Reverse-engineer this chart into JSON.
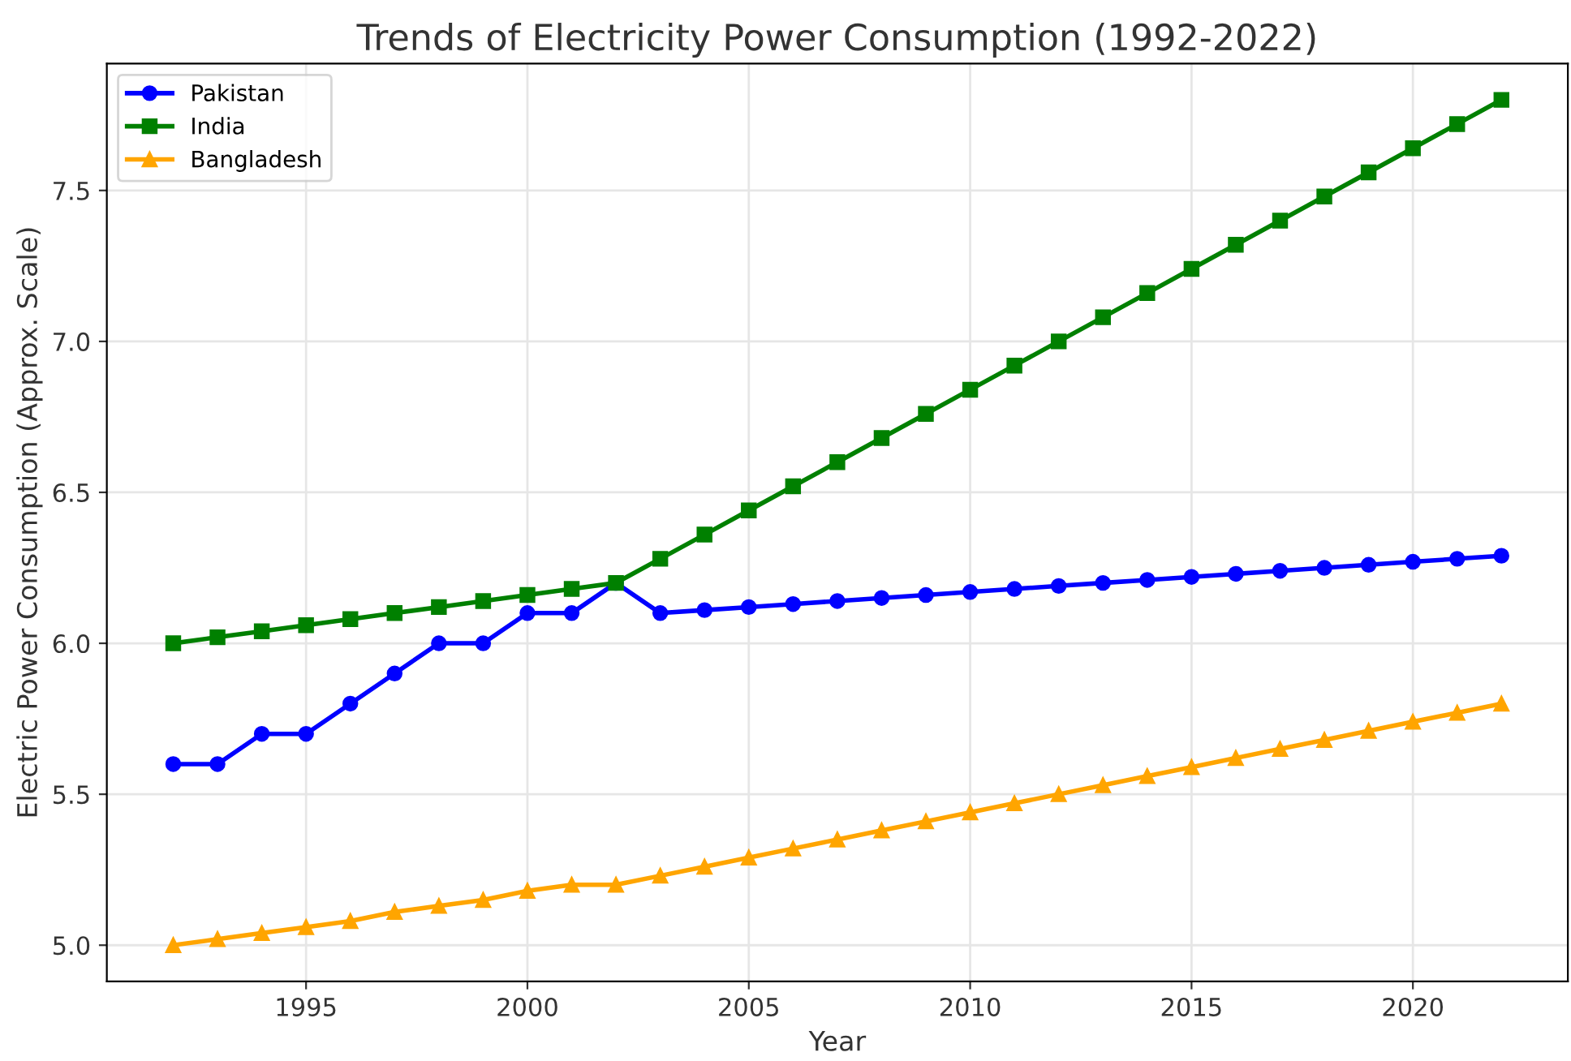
{
  "chart_data": {
    "type": "line",
    "title": "Trends of Electricity Power Consumption (1992-2022)",
    "xlabel": "Year",
    "ylabel": "Electric Power Consumption (Approx. Scale)",
    "x": [
      1992,
      1993,
      1994,
      1995,
      1996,
      1997,
      1998,
      1999,
      2000,
      2001,
      2002,
      2003,
      2004,
      2005,
      2006,
      2007,
      2008,
      2009,
      2010,
      2011,
      2012,
      2013,
      2014,
      2015,
      2016,
      2017,
      2018,
      2019,
      2020,
      2021,
      2022
    ],
    "series": [
      {
        "name": "Pakistan",
        "color": "#0000ff",
        "marker": "circle",
        "values": [
          5.6,
          5.6,
          5.7,
          5.7,
          5.8,
          5.9,
          6.0,
          6.0,
          6.1,
          6.1,
          6.2,
          6.1,
          6.11,
          6.12,
          6.13,
          6.14,
          6.15,
          6.16,
          6.17,
          6.18,
          6.19,
          6.2,
          6.21,
          6.22,
          6.23,
          6.24,
          6.25,
          6.26,
          6.27,
          6.28,
          6.29
        ]
      },
      {
        "name": "India",
        "color": "#008000",
        "marker": "square",
        "values": [
          6.0,
          6.02,
          6.04,
          6.06,
          6.08,
          6.1,
          6.12,
          6.14,
          6.16,
          6.18,
          6.2,
          6.28,
          6.36,
          6.44,
          6.52,
          6.6,
          6.68,
          6.76,
          6.84,
          6.92,
          7.0,
          7.08,
          7.16,
          7.24,
          7.32,
          7.4,
          7.48,
          7.56,
          7.64,
          7.72,
          7.8
        ]
      },
      {
        "name": "Bangladesh",
        "color": "#ffa500",
        "marker": "triangle",
        "values": [
          5.0,
          5.02,
          5.04,
          5.06,
          5.08,
          5.11,
          5.13,
          5.15,
          5.18,
          5.2,
          5.2,
          5.23,
          5.26,
          5.29,
          5.32,
          5.35,
          5.38,
          5.41,
          5.44,
          5.47,
          5.5,
          5.53,
          5.56,
          5.59,
          5.62,
          5.65,
          5.68,
          5.71,
          5.74,
          5.77,
          5.8
        ]
      }
    ],
    "xlim": [
      1990.5,
      2023.5
    ],
    "xticks": [
      1995,
      2000,
      2005,
      2010,
      2015,
      2020
    ],
    "ylim": [
      4.88,
      7.92
    ],
    "yticks": [
      {
        "value": 5.0,
        "label": "5.0"
      },
      {
        "value": 5.5,
        "label": "5.5"
      },
      {
        "value": 6.0,
        "label": "6.0"
      },
      {
        "value": 6.5,
        "label": "6.5"
      },
      {
        "value": 7.0,
        "label": "7.0"
      },
      {
        "value": 7.5,
        "label": "7.5"
      }
    ],
    "grid": true,
    "legend": "top left",
    "line_style": "solid"
  }
}
